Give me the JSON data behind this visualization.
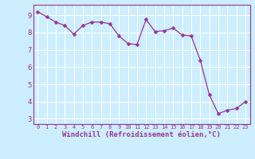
{
  "x": [
    0,
    1,
    2,
    3,
    4,
    5,
    6,
    7,
    8,
    9,
    10,
    11,
    12,
    13,
    14,
    15,
    16,
    17,
    18,
    19,
    20,
    21,
    22,
    23
  ],
  "y": [
    9.2,
    8.9,
    8.6,
    8.4,
    7.9,
    8.4,
    8.6,
    8.6,
    8.5,
    7.8,
    7.35,
    7.3,
    8.75,
    8.05,
    8.1,
    8.25,
    7.85,
    7.8,
    6.4,
    4.4,
    3.3,
    3.5,
    3.6,
    4.0
  ],
  "line_color": "#993399",
  "marker": "D",
  "marker_size": 2.5,
  "bg_color": "#cceeff",
  "grid_color": "#ffffff",
  "xlabel": "Windchill (Refroidissement éolien,°C)",
  "xlabel_color": "#993399",
  "tick_color": "#993399",
  "ylim": [
    2.7,
    9.6
  ],
  "xlim": [
    -0.5,
    23.5
  ],
  "yticks": [
    3,
    4,
    5,
    6,
    7,
    8,
    9
  ],
  "xticks": [
    0,
    1,
    2,
    3,
    4,
    5,
    6,
    7,
    8,
    9,
    10,
    11,
    12,
    13,
    14,
    15,
    16,
    17,
    18,
    19,
    20,
    21,
    22,
    23
  ],
  "spine_color": "#993399",
  "figsize": [
    3.2,
    2.0
  ],
  "dpi": 100
}
